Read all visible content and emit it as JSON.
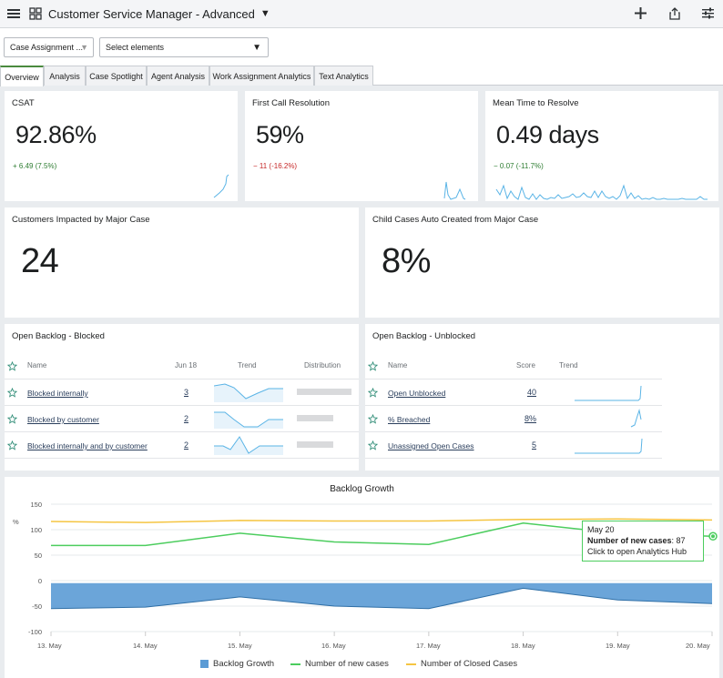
{
  "header": {
    "title": "Customer Service Manager - Advanced"
  },
  "filters": {
    "assignment": "Case Assignment ...",
    "elements": "Select elements"
  },
  "tabs": [
    "Overview",
    "Analysis",
    "Case Spotlight",
    "Agent Analysis",
    "Work Assignment Analytics",
    "Text Analytics"
  ],
  "kpis": [
    {
      "title": "CSAT",
      "value": "92.86%",
      "delta": "+ 6.49 (7.5%)",
      "delta_color": "#2e7d32"
    },
    {
      "title": "First Call Resolution",
      "value": "59%",
      "delta": "− 11 (-16.2%)",
      "delta_color": "#c62828"
    },
    {
      "title": "Mean Time to Resolve",
      "value": "0.49 days",
      "delta": "− 0.07 (-11.7%)",
      "delta_color": "#2e7d32"
    }
  ],
  "major": [
    {
      "title": "Customers Impacted by Major Case",
      "value": "24"
    },
    {
      "title": "Child Cases Auto Created from Major Case",
      "value": "8%"
    }
  ],
  "blocked": {
    "title": "Open Backlog - Blocked",
    "headers": {
      "name": "Name",
      "date": "Jun 18",
      "trend": "Trend",
      "distribution": "Distribution"
    },
    "rows": [
      {
        "name": "Blocked internally",
        "value": "3"
      },
      {
        "name": "Blocked by customer",
        "value": "2"
      },
      {
        "name": "Blocked internally and by customer",
        "value": "2"
      }
    ]
  },
  "unblocked": {
    "title": "Open Backlog - Unblocked",
    "headers": {
      "name": "Name",
      "score": "Score",
      "trend": "Trend"
    },
    "rows": [
      {
        "name": "Open Unblocked",
        "value": "40"
      },
      {
        "name": "% Breached",
        "value": "8%"
      },
      {
        "name": "Unassigned Open Cases",
        "value": "5"
      }
    ]
  },
  "chart_data": {
    "type": "line",
    "title": "Backlog Growth",
    "ylabel": "%",
    "ylim": [
      -100,
      150
    ],
    "yticks": [
      "150",
      "100",
      "50",
      "0",
      "-50",
      "-100"
    ],
    "categories": [
      "13. May",
      "14. May",
      "15. May",
      "16. May",
      "17. May",
      "18. May",
      "19. May",
      "20. May"
    ],
    "series": [
      {
        "name": "Backlog Growth",
        "type": "area",
        "color": "#5b9bd5",
        "values": [
          -55,
          -52,
          -32,
          -50,
          -55,
          -15,
          -38,
          -45
        ]
      },
      {
        "name": "Number of new cases",
        "type": "line",
        "color": "#4ccd5e",
        "values": [
          69,
          69,
          93,
          76,
          71,
          113,
          93,
          87
        ]
      },
      {
        "name": "Number of Closed Cases",
        "type": "line",
        "color": "#f5c542",
        "values": [
          116,
          114,
          118,
          117,
          117,
          120,
          121,
          119
        ]
      }
    ],
    "tooltip": {
      "date": "May 20",
      "label": "Number of new cases",
      "value": ": 87",
      "hint": "Click to open Analytics Hub"
    }
  }
}
